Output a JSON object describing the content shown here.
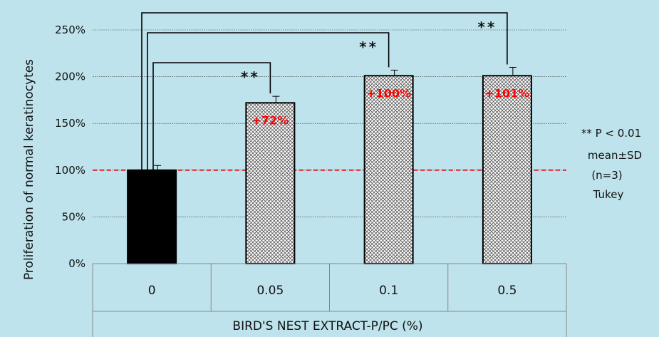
{
  "chart_data": {
    "type": "bar",
    "categories": [
      "0",
      "0.05",
      "0.1",
      "0.5"
    ],
    "values": [
      100,
      172,
      201,
      201
    ],
    "errors": [
      5,
      7,
      6,
      9
    ],
    "bar_fill": [
      "solid-black",
      "crosshatch",
      "crosshatch",
      "crosshatch"
    ],
    "data_labels": [
      "",
      "+72%",
      "+100%",
      "+101%"
    ],
    "ylim": [
      0,
      250
    ],
    "yticks": [
      0,
      50,
      100,
      150,
      200,
      250
    ],
    "ytick_labels": [
      "0%",
      "50%",
      "100%",
      "150%",
      "200%",
      "250%"
    ],
    "xlabel": "BIRD'S NEST EXTRACT-P/PC (%)",
    "ylabel": "Proliferation of normal keratinocytes",
    "reference_line": {
      "value": 100,
      "style": "dashed",
      "color": "#e8161b"
    },
    "significance": [
      {
        "from": "0",
        "to": "0.05",
        "label": "**"
      },
      {
        "from": "0",
        "to": "0.1",
        "label": "**"
      },
      {
        "from": "0",
        "to": "0.5",
        "label": "**"
      }
    ],
    "notes": [
      "** P < 0.01",
      "mean±SD",
      "(n=3)",
      "Tukey"
    ],
    "grid": true,
    "colors": {
      "background": "#bfe3ec",
      "grid": "#555555",
      "label": "#ff0000"
    }
  }
}
